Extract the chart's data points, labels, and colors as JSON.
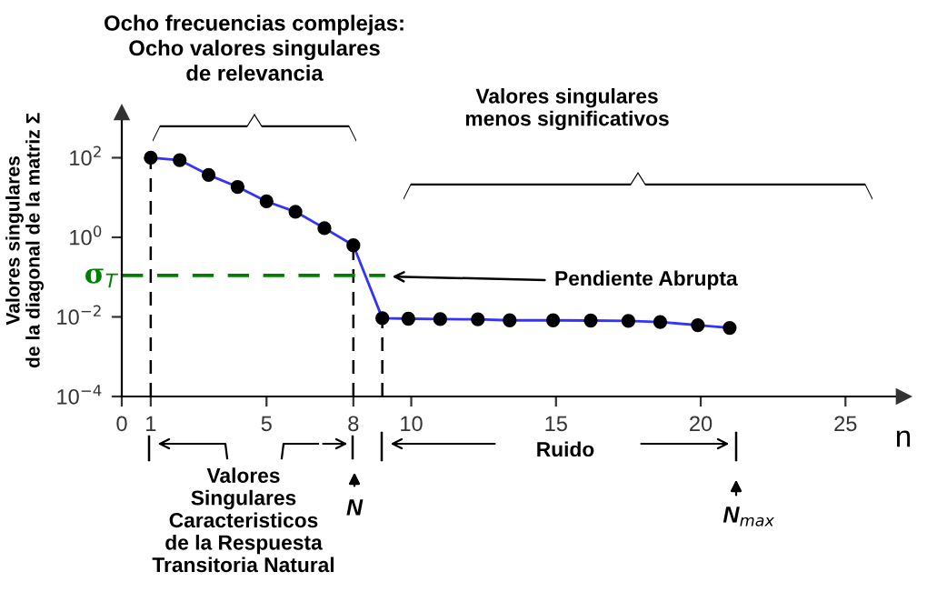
{
  "chart_data": {
    "type": "line",
    "title": "Ocho frecuencias complejas:\nOcho valores singulares\nde relevancia",
    "xlabel": "n",
    "ylabel": "Valores singulares\nde la diagonal de la matriz Σ",
    "x": [
      1,
      2,
      3,
      4,
      5,
      6,
      7,
      8,
      9,
      9.9,
      11,
      12.3,
      13.4,
      14.9,
      16.2,
      17.5,
      18.6,
      19.9,
      21
    ],
    "series": [
      {
        "color": "#3333ff",
        "values": [
          100,
          87,
          37,
          18.5,
          8,
          4.4,
          1.7,
          0.63,
          0.0093,
          0.009,
          0.0088,
          0.0087,
          0.0082,
          0.0082,
          0.0081,
          0.0079,
          0.0074,
          0.0062,
          0.0053
        ]
      }
    ],
    "marker": "circle",
    "line_style": "solid",
    "log": "y",
    "grid": false,
    "legend": false,
    "xlim": [
      0,
      27
    ],
    "xticks": [
      0,
      1,
      5,
      8,
      10,
      15,
      20,
      25
    ],
    "ylim": [
      0.0001,
      1350
    ],
    "yticks": [
      {
        "value": 0.0001,
        "label": "10$^{−4}$"
      },
      {
        "value": 0.01,
        "label": "10$^{−2}$"
      },
      {
        "value": 1,
        "label": "10$^{0}$"
      },
      {
        "value": 100,
        "label": "10$^{2}$"
      }
    ],
    "ref_lines": [
      {
        "axis": "y",
        "value": 0.11,
        "label": "σ$_{T}$",
        "color": "#008000",
        "line_style": "dashed"
      },
      {
        "axis": "x",
        "value": 1,
        "color": "#000000",
        "line_style": "dashed"
      },
      {
        "axis": "x",
        "value": 8,
        "color": "#000000",
        "line_style": "dashed"
      },
      {
        "axis": "x",
        "value": 9,
        "color": "#000000",
        "line_style": "dashed"
      }
    ],
    "annotations": [
      "Valores singulares\nmenos significativos",
      "Pendiente Abrupta",
      "Valores\nSingulares\nCaracteristicos\nde la Respuesta\nTransitoria Natural",
      "Ruido",
      "N",
      "N$_{max}$"
    ]
  }
}
